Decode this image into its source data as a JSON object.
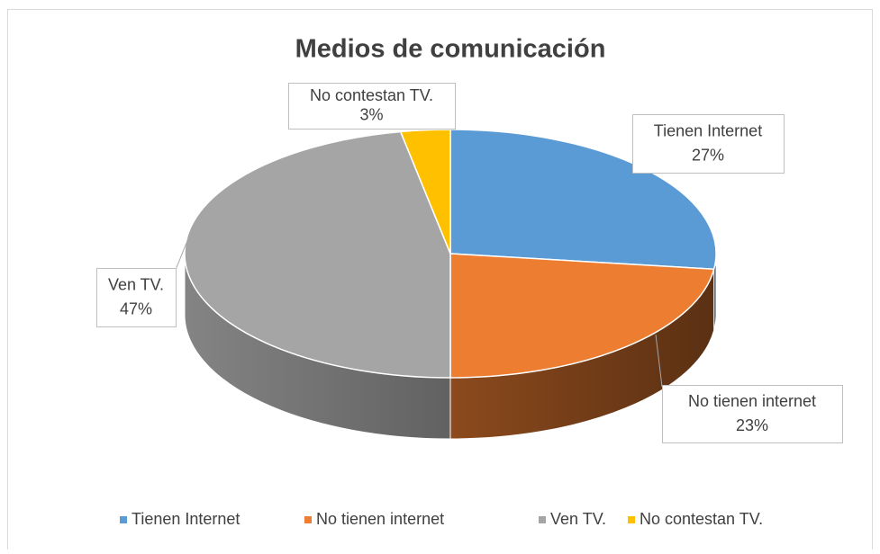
{
  "chart_data": {
    "type": "pie",
    "title": "Medios de comunicación",
    "categories": [
      "Tienen Internet",
      "No tienen internet",
      "Ven TV.",
      "No contestan TV."
    ],
    "values": [
      27,
      23,
      47,
      3
    ],
    "value_labels": [
      "27%",
      "23%",
      "47%",
      "3%"
    ],
    "colors": [
      "#5b9bd5",
      "#ed7d31",
      "#a5a5a5",
      "#ffc000"
    ],
    "legend": "bottom"
  }
}
